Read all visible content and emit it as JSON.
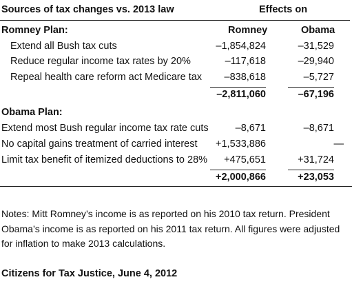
{
  "title": "Sources of tax changes vs. 2013 law",
  "effects_header": "Effects on",
  "columns": [
    "Romney",
    "Obama"
  ],
  "romney_plan": {
    "heading": "Romney Plan:",
    "rows": [
      {
        "label": "Extend all Bush tax cuts",
        "romney": "–1,854,824",
        "obama": "–31,529"
      },
      {
        "label": "Reduce regular income tax rates by 20%",
        "romney": "–117,618",
        "obama": "–29,940"
      },
      {
        "label": "Repeal health care reform act Medicare tax",
        "romney": "–838,618",
        "obama": "–5,727"
      }
    ],
    "total": {
      "romney": "–2,811,060",
      "obama": "–67,196"
    }
  },
  "obama_plan": {
    "heading": "Obama Plan:",
    "rows": [
      {
        "label": "Extend most Bush regular income tax rate cuts",
        "romney": "–8,671",
        "obama": "–8,671"
      },
      {
        "label": "No capital gains treatment of carried interest",
        "romney": "+1,533,886",
        "obama": "—"
      },
      {
        "label": "Limit tax benefit of itemized deductions to 28%",
        "romney": "+475,651",
        "obama": "+31,724"
      }
    ],
    "total": {
      "romney": "+2,000,866",
      "obama": "+23,053"
    }
  },
  "notes": "Notes: Mitt Romney’s income is as reported on his 2010 tax return. President Obama’s income is as reported on his 2011 tax return. All figures were adjusted for inflation to make 2013 calculations.",
  "source": "Citizens for Tax Justice, June 4, 2012"
}
